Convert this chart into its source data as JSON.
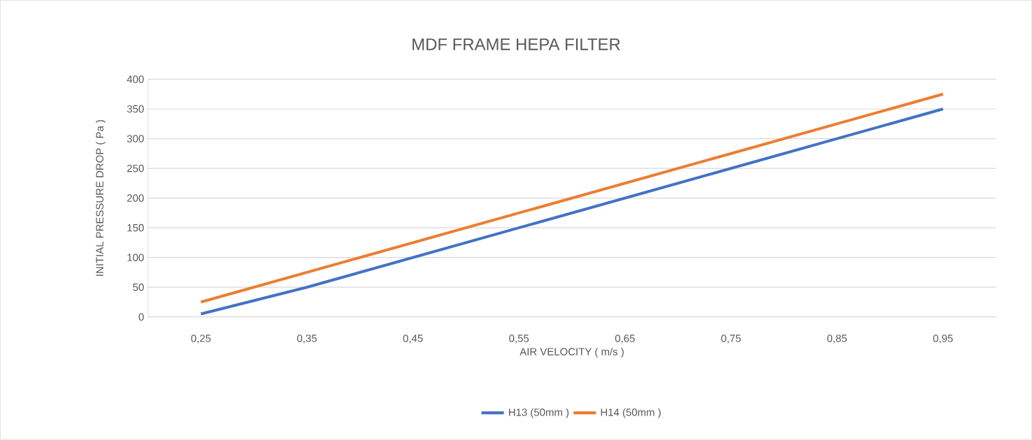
{
  "chart_data": {
    "type": "line",
    "title": "MDF FRAME HEPA FILTER",
    "xlabel": "AIR VELOCITY ( m/s )",
    "ylabel": "INITIAL PRESSURE DROP ( Pa )",
    "categories": [
      "0,25",
      "0,35",
      "0,45",
      "0,55",
      "0,65",
      "0,75",
      "0,85",
      "0,95"
    ],
    "series": [
      {
        "name": "H13 (50mm )",
        "color": "#4472c4",
        "values": [
          5,
          50,
          100,
          150,
          200,
          250,
          300,
          350
        ]
      },
      {
        "name": "H14 (50mm )",
        "color": "#ed7d31",
        "values": [
          25,
          75,
          125,
          175,
          225,
          275,
          325,
          375
        ]
      }
    ],
    "ylim": [
      0,
      400
    ],
    "yticks": [
      0,
      50,
      100,
      150,
      200,
      250,
      300,
      350,
      400
    ],
    "grid": "y",
    "legend": "bottom",
    "marker": "none",
    "line_style": "solid"
  }
}
